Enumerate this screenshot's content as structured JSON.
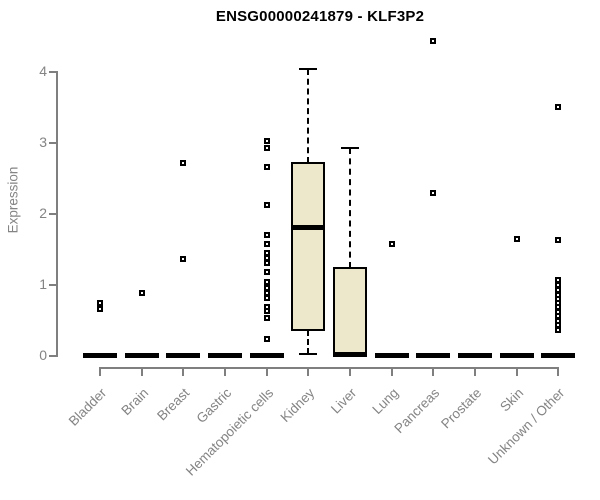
{
  "title": "ENSG00000241879 - KLF3P2",
  "chart_data": {
    "type": "boxplot",
    "title": "ENSG00000241879 - KLF3P2",
    "xlabel": "",
    "ylabel": "Expression",
    "ylim": [
      0,
      4
    ],
    "yticks": [
      0,
      1,
      2,
      3,
      4
    ],
    "grid": false,
    "legend": "none",
    "box_fill_color": "#EDE7CB",
    "box_border_color": "#000000",
    "axis_color": "#7f7f7f",
    "label_color": "#848484",
    "title_color": "#000000",
    "categories": [
      "Bladder",
      "Brain",
      "Breast",
      "Gastric",
      "Hematopoietic cells",
      "Kidney",
      "Liver",
      "Lung",
      "Pancreas",
      "Prostate",
      "Skin",
      "Unknown / Other"
    ],
    "series": [
      {
        "category": "Bladder",
        "q1": 0,
        "median": 0,
        "q3": 0,
        "whisker_low": 0,
        "whisker_high": 0,
        "outliers": [
          0.73,
          0.65
        ]
      },
      {
        "category": "Brain",
        "q1": 0,
        "median": 0,
        "q3": 0,
        "whisker_low": 0,
        "whisker_high": 0,
        "outliers": [
          0.88
        ]
      },
      {
        "category": "Breast",
        "q1": 0,
        "median": 0,
        "q3": 0,
        "whisker_low": 0,
        "whisker_high": 0,
        "outliers": [
          2.7,
          1.35
        ]
      },
      {
        "category": "Gastric",
        "q1": 0,
        "median": 0,
        "q3": 0,
        "whisker_low": 0,
        "whisker_high": 0,
        "outliers": []
      },
      {
        "category": "Hematopoietic cells",
        "q1": 0,
        "median": 0,
        "q3": 0,
        "whisker_low": 0,
        "whisker_high": 0,
        "outliers": [
          3.02,
          2.92,
          2.65,
          2.11,
          1.69,
          1.57,
          1.43,
          1.36,
          1.29,
          1.17,
          1.03,
          0.95,
          0.87,
          0.8,
          0.68,
          0.62,
          0.52,
          0.23
        ]
      },
      {
        "category": "Kidney",
        "q1": 0.35,
        "median": 1.8,
        "q3": 2.7,
        "whisker_low": 0.01,
        "whisker_high": 4.03,
        "outliers": []
      },
      {
        "category": "Liver",
        "q1": 0,
        "median": 0.02,
        "q3": 1.23,
        "whisker_low": 0,
        "whisker_high": 2.92,
        "outliers": []
      },
      {
        "category": "Lung",
        "q1": 0,
        "median": 0,
        "q3": 0,
        "whisker_low": 0,
        "whisker_high": 0,
        "outliers": [
          1.56
        ]
      },
      {
        "category": "Pancreas",
        "q1": 0,
        "median": 0,
        "q3": 0,
        "whisker_low": 0,
        "whisker_high": 0,
        "outliers": [
          4.42,
          2.28
        ]
      },
      {
        "category": "Prostate",
        "q1": 0,
        "median": 0,
        "q3": 0,
        "whisker_low": 0,
        "whisker_high": 0,
        "outliers": []
      },
      {
        "category": "Skin",
        "q1": 0,
        "median": 0,
        "q3": 0,
        "whisker_low": 0,
        "whisker_high": 0,
        "outliers": [
          1.64
        ]
      },
      {
        "category": "Unknown / Other",
        "q1": 0,
        "median": 0,
        "q3": 0,
        "whisker_low": 0,
        "whisker_high": 0,
        "outliers": [
          3.5,
          1.62,
          1.05,
          0.98,
          0.91,
          0.85,
          0.79,
          0.73,
          0.67,
          0.61,
          0.55,
          0.48,
          0.42,
          0.35
        ]
      }
    ]
  }
}
